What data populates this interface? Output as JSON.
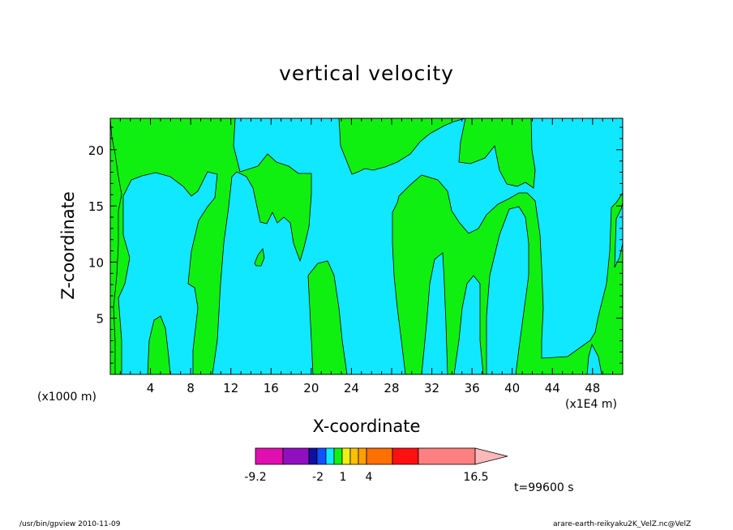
{
  "chart_data": {
    "type": "heatmap",
    "title": "vertical velocity",
    "xlabel": "X-coordinate",
    "ylabel": "Z-coordinate",
    "x_unit_label": "(x1000 m)",
    "x_scale_label": "(x1E4 m)",
    "xlim": [
      0,
      51
    ],
    "ylim": [
      0,
      22.8
    ],
    "x_ticks": [
      4,
      8,
      12,
      16,
      20,
      24,
      28,
      32,
      36,
      40,
      44,
      48
    ],
    "y_ticks": [
      5,
      10,
      15,
      20
    ],
    "time_label": "t=99600 s",
    "colorbar": {
      "colors": [
        "#e010b0",
        "#9010c0",
        "#1010a0",
        "#1050ff",
        "#10e8ff",
        "#10f010",
        "#f0f010",
        "#ffc000",
        "#ffa000",
        "#ff7000",
        "#ff1010",
        "#ff8080",
        "#ffb8b8"
      ],
      "tick_labels": [
        "-9.2",
        "-2",
        "1",
        "4",
        "16.5"
      ],
      "extend": "max"
    },
    "fill_colors": {
      "negative": "#10e8ff",
      "positive": "#10f010"
    }
  },
  "footer": {
    "left": "/usr/bin/gpview   2010-11-09",
    "right": "arare-earth-reikyaku2K_VelZ.nc@VelZ"
  }
}
